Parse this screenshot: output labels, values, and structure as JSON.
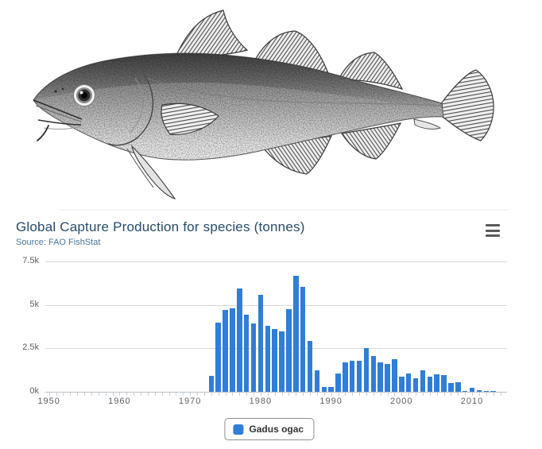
{
  "fish": {
    "species": "Gadus ogac",
    "description": "Stippled scientific line illustration of a Greenland cod, side view facing left"
  },
  "chart": {
    "title": "Global Capture Production for species (tonnes)",
    "subtitle": "Source: FAO FishStat",
    "context_menu_icon": "hamburger-icon",
    "legend": {
      "label": "Gadus ogac",
      "swatch_color": "#2f7ed8"
    },
    "colors": {
      "bar": "#2f7ed8",
      "title": "#274b6d",
      "subtitle": "#4d759e",
      "axis_label": "#606060",
      "gridline": "#d8d8d8",
      "axis_line": "#c0c0c0",
      "tick": "#c0d0e0",
      "legend_border": "#909090",
      "legend_text": "#333333"
    }
  },
  "chart_data": {
    "type": "bar",
    "title": "Global Capture Production for species (tonnes)",
    "subtitle": "Source: FAO FishStat",
    "xlabel": "",
    "ylabel": "",
    "xlim": [
      1950,
      2015
    ],
    "ylim": [
      0,
      7500
    ],
    "grid": true,
    "legend_position": "bottom-center",
    "y_tick_values": [
      0,
      2500,
      5000,
      7500
    ],
    "y_tick_labels": [
      "0k",
      "2.5k",
      "5k",
      "7.5k"
    ],
    "x_tick_values": [
      1950,
      1960,
      1970,
      1980,
      1990,
      2000,
      2010
    ],
    "x_tick_labels": [
      "1950",
      "1960",
      "1970",
      "1980",
      "1990",
      "2000",
      "2010"
    ],
    "minor_tick_every_years": 1,
    "series": [
      {
        "name": "Gadus ogac",
        "color": "#2f7ed8",
        "x": [
          1973,
          1974,
          1975,
          1976,
          1977,
          1978,
          1979,
          1980,
          1981,
          1982,
          1983,
          1984,
          1985,
          1986,
          1987,
          1988,
          1989,
          1990,
          1991,
          1992,
          1993,
          1994,
          1995,
          1996,
          1997,
          1998,
          1999,
          2000,
          2001,
          2002,
          2003,
          2004,
          2005,
          2006,
          2007,
          2008,
          2009,
          2010,
          2011,
          2012,
          2013
        ],
        "values": [
          900,
          4000,
          4700,
          4800,
          5950,
          4450,
          3950,
          5600,
          3800,
          3600,
          3500,
          4750,
          6700,
          6050,
          2950,
          1250,
          280,
          280,
          1050,
          1700,
          1800,
          1800,
          2500,
          2050,
          1680,
          1600,
          1900,
          870,
          1070,
          800,
          1220,
          870,
          1020,
          980,
          520,
          570,
          60,
          210,
          110,
          60,
          30
        ]
      }
    ]
  }
}
